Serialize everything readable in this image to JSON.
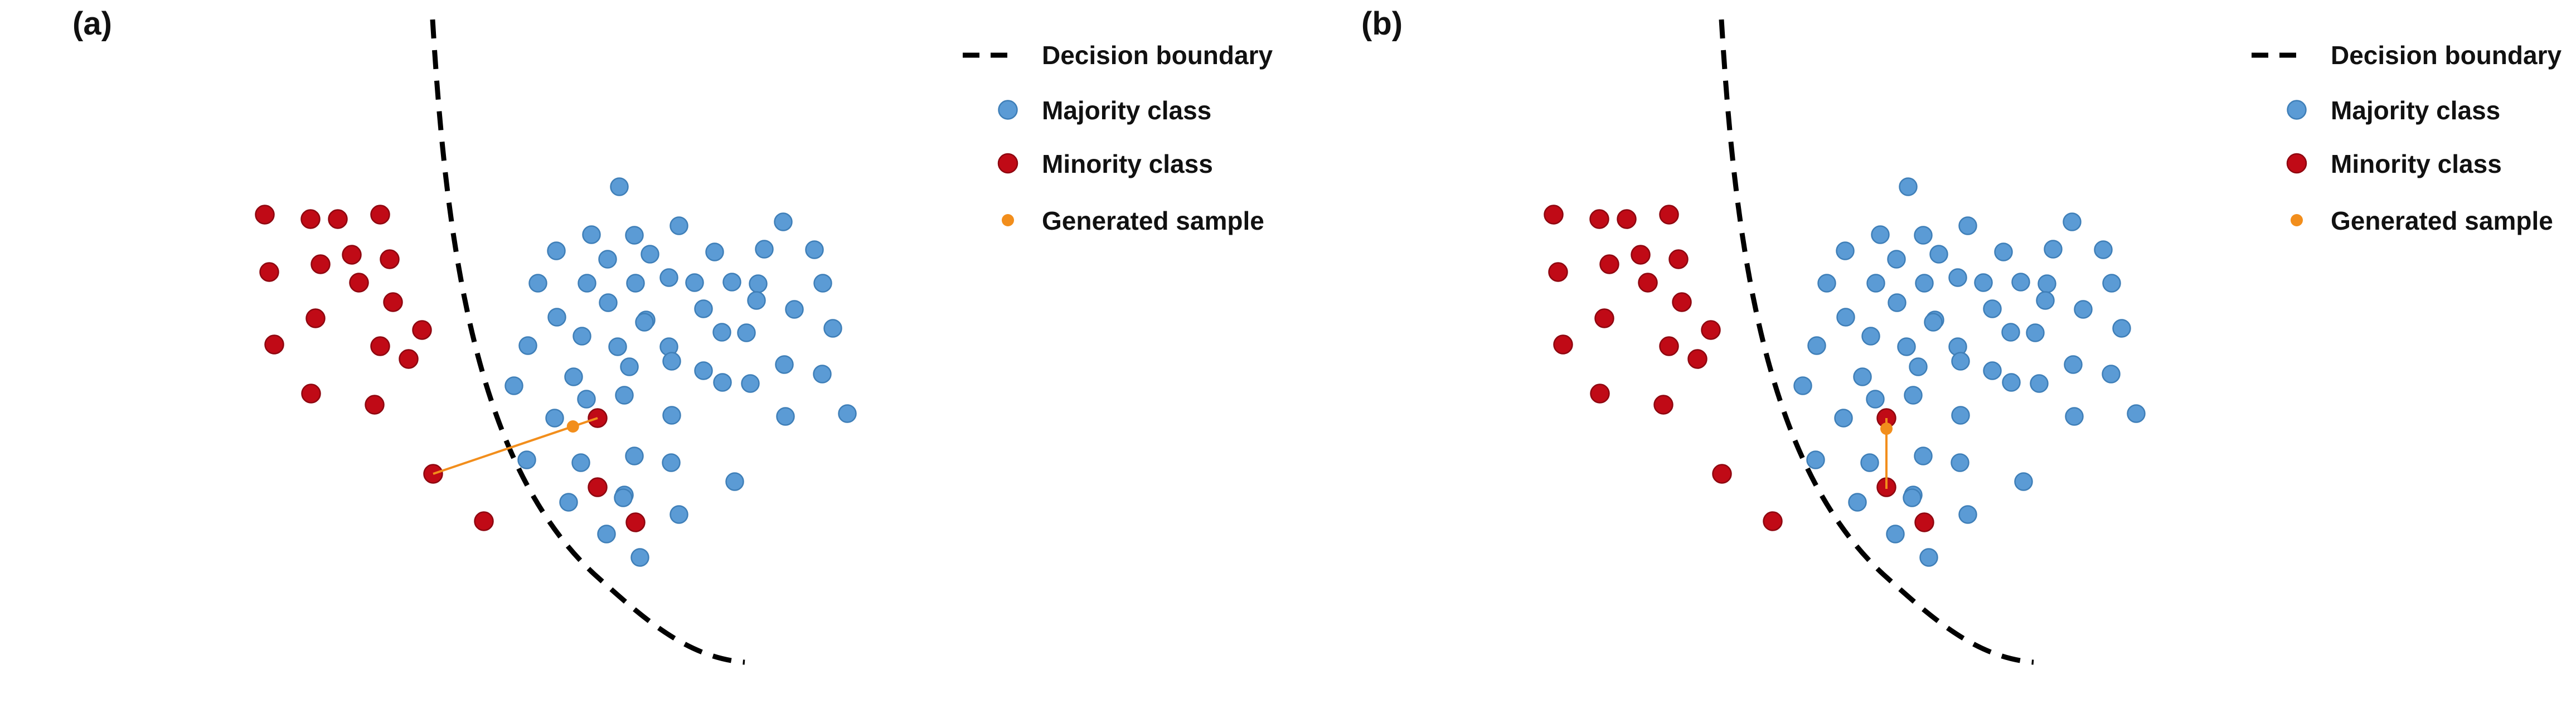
{
  "colors": {
    "majority": "#5b9bd5",
    "majority_stroke": "#3f7fb8",
    "minority": "#c00a16",
    "minority_stroke": "#8e0710",
    "generated": "#f28e1c",
    "boundary": "#000000"
  },
  "legend": {
    "boundary": "Decision boundary",
    "majority": "Majority class",
    "minority": "Minority class",
    "generated": "Generated sample"
  },
  "panels": [
    {
      "label": "(a)",
      "generated_sample": {
        "from_point": "minority-outlier",
        "to_point": "minority-in-cluster"
      }
    },
    {
      "label": "(b)",
      "generated_sample": {
        "from_point": "minority-in-cluster",
        "to_point": "minority-in-cluster"
      }
    }
  ]
}
